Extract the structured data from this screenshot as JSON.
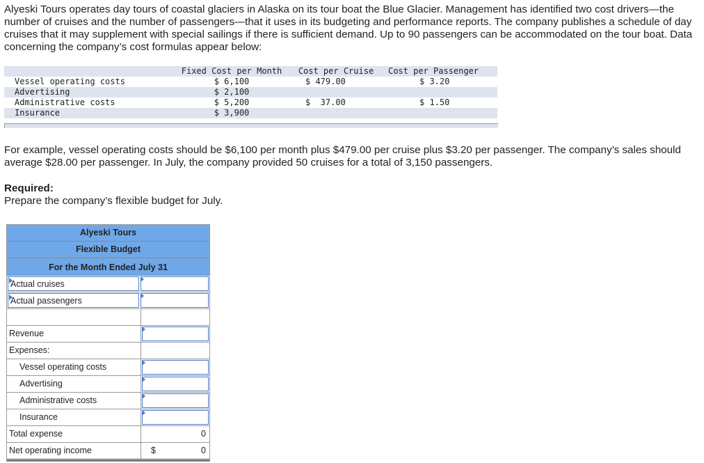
{
  "intro": "Alyeski Tours operates day tours of coastal glaciers in Alaska on its tour boat the Blue Glacier. Management has identified two cost drivers—the number of cruises and the number of passengers—that it uses in its budgeting and performance reports. The company publishes a schedule of day cruises that it may supplement with special sailings if there is sufficient demand. Up to 90 passengers can be accommodated on the tour boat. Data concerning the company’s cost formulas appear below:",
  "cost_table": {
    "headers": [
      "",
      "Fixed Cost per Month",
      "Cost per Cruise",
      "Cost per Passenger"
    ],
    "rows": [
      [
        "Vessel operating costs",
        "$ 6,100",
        "$ 479.00",
        "$ 3.20"
      ],
      [
        "Advertising",
        "$ 2,100",
        "",
        ""
      ],
      [
        "Administrative costs",
        "$ 5,200",
        "$  37.00",
        "$ 1.50"
      ],
      [
        "Insurance",
        "$ 3,900",
        "",
        ""
      ]
    ]
  },
  "example": "For example, vessel operating costs should be $6,100 per month plus $479.00 per cruise plus $3.20 per passenger. The company’s sales should average $28.00 per passenger. In July, the company provided 50 cruises for a total of 3,150 passengers.",
  "required_label": "Required:",
  "required_text": "Prepare the company’s flexible budget for July.",
  "budget": {
    "company": "Alyeski Tours",
    "title": "Flexible Budget",
    "period": "For the Month Ended July 31",
    "actual_cruises": "Actual cruises",
    "actual_passengers": "Actual passengers",
    "revenue": "Revenue",
    "expenses": "Expenses:",
    "vessel": "Vessel operating costs",
    "advertising": "Advertising",
    "admin": "Administrative costs",
    "insurance": "Insurance",
    "total_expense": "Total expense",
    "total_expense_value": "0",
    "noi": "Net operating income",
    "noi_currency": "$",
    "noi_value": "0"
  },
  "colors": {
    "header_bg": "#6fa8e8",
    "input_border": "#4a7bc8"
  }
}
